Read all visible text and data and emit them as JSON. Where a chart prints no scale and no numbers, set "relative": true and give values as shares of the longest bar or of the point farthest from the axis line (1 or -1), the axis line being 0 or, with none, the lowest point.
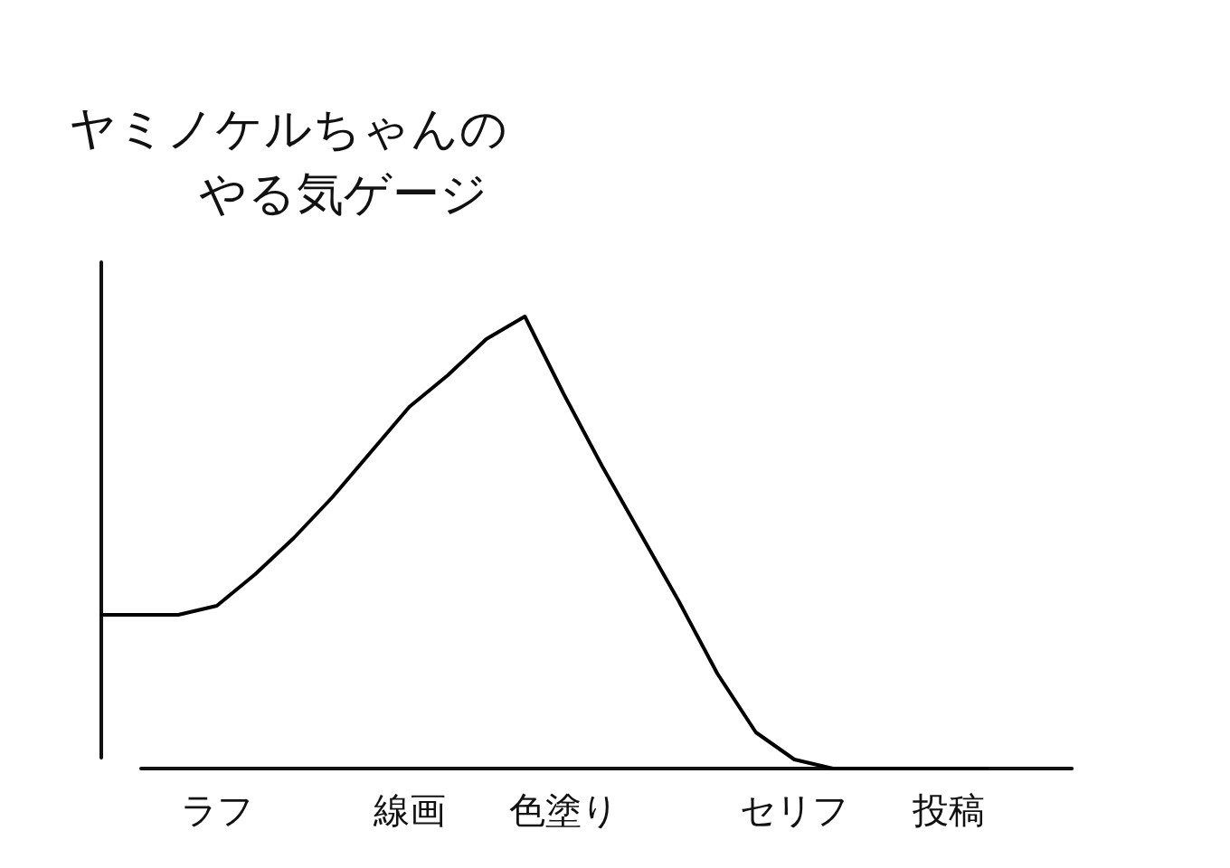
{
  "chart_data": {
    "type": "line",
    "title": "ヤミノケルちゃんのやる気ゲージ",
    "categories": [
      null,
      null,
      null,
      "ラフ",
      null,
      null,
      null,
      null,
      "線画",
      null,
      null,
      null,
      "色塗り",
      null,
      null,
      null,
      null,
      null,
      "セリフ",
      null,
      null,
      null,
      "投稿",
      null
    ],
    "relative": true,
    "series": [
      {
        "color": "#000000",
        "values": [
          0.34,
          0.34,
          0.34,
          0.36,
          0.43,
          0.51,
          0.6,
          0.7,
          0.8,
          0.87,
          0.95,
          1,
          0.83,
          0.67,
          0.52,
          0.37,
          0.21,
          0.08,
          0.02,
          0,
          0,
          0,
          0,
          0
        ]
      }
    ]
  }
}
